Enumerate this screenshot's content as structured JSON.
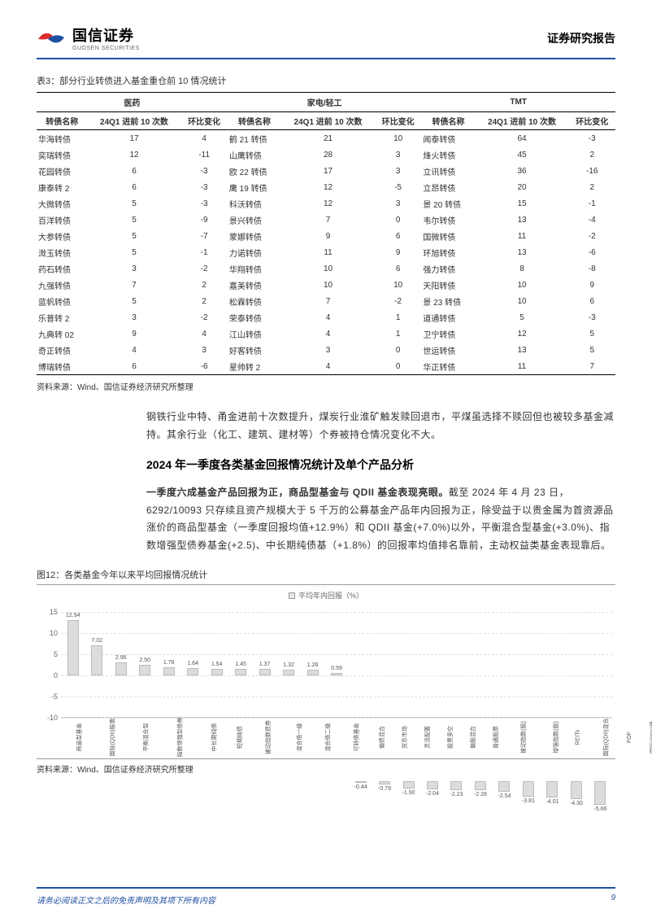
{
  "header": {
    "company_cn": "国信证券",
    "company_en": "GUOSEN SECURITIES",
    "report_type": "证券研究报告",
    "logo_colors": {
      "red": "#d92d2d",
      "blue": "#1e4fa0"
    },
    "divider_color": "#1e4fa0"
  },
  "table3": {
    "title": "表3：部分行业转债进入基金重仓前 10 情况统计",
    "groups": [
      "医药",
      "家电/轻工",
      "TMT"
    ],
    "sub_headers": [
      "转债名称",
      "24Q1 进前 10 次数",
      "环比变化"
    ],
    "rows": [
      {
        "a": [
          "华海转债",
          "17",
          "4"
        ],
        "b": [
          "鹤 21 转债",
          "21",
          "10"
        ],
        "c": [
          "闻泰转债",
          "64",
          "-3"
        ]
      },
      {
        "a": [
          "奕瑞转债",
          "12",
          "-11"
        ],
        "b": [
          "山鹰转债",
          "28",
          "3"
        ],
        "c": [
          "烽火转债",
          "45",
          "2"
        ]
      },
      {
        "a": [
          "花园转债",
          "6",
          "-3"
        ],
        "b": [
          "欧 22 转债",
          "17",
          "3"
        ],
        "c": [
          "立讯转债",
          "36",
          "-16"
        ]
      },
      {
        "a": [
          "康泰转 2",
          "6",
          "-3"
        ],
        "b": [
          "鹰 19 转债",
          "12",
          "-5"
        ],
        "c": [
          "立昂转债",
          "20",
          "2"
        ]
      },
      {
        "a": [
          "大微转债",
          "5",
          "-3"
        ],
        "b": [
          "科沃转债",
          "12",
          "3"
        ],
        "c": [
          "景 20 转债",
          "15",
          "-1"
        ]
      },
      {
        "a": [
          "百洋转债",
          "5",
          "-9"
        ],
        "b": [
          "景兴转债",
          "7",
          "0"
        ],
        "c": [
          "韦尔转债",
          "13",
          "-4"
        ]
      },
      {
        "a": [
          "大参转债",
          "5",
          "-7"
        ],
        "b": [
          "蒙娜转债",
          "9",
          "6"
        ],
        "c": [
          "国微转债",
          "11",
          "-2"
        ]
      },
      {
        "a": [
          "溦玉转债",
          "5",
          "-1"
        ],
        "b": [
          "力诺转债",
          "11",
          "9"
        ],
        "c": [
          "环旭转债",
          "13",
          "-6"
        ]
      },
      {
        "a": [
          "药石转债",
          "3",
          "-2"
        ],
        "b": [
          "华翔转债",
          "10",
          "6"
        ],
        "c": [
          "强力转债",
          "8",
          "-8"
        ]
      },
      {
        "a": [
          "九强转债",
          "7",
          "2"
        ],
        "b": [
          "嘉美转债",
          "10",
          "10"
        ],
        "c": [
          "天阳转债",
          "10",
          "9"
        ]
      },
      {
        "a": [
          "蓝帆转债",
          "5",
          "2"
        ],
        "b": [
          "松霖转债",
          "7",
          "-2"
        ],
        "c": [
          "景 23 转债",
          "10",
          "6"
        ]
      },
      {
        "a": [
          "乐普转 2",
          "3",
          "-2"
        ],
        "b": [
          "荣泰转债",
          "4",
          "1"
        ],
        "c": [
          "道通转债",
          "5",
          "-3"
        ]
      },
      {
        "a": [
          "九典转 02",
          "9",
          "4"
        ],
        "b": [
          "江山转债",
          "4",
          "1"
        ],
        "c": [
          "卫宁转债",
          "12",
          "5"
        ]
      },
      {
        "a": [
          "奇正转债",
          "4",
          "3"
        ],
        "b": [
          "好客转债",
          "3",
          "0"
        ],
        "c": [
          "世运转债",
          "13",
          "5"
        ]
      },
      {
        "a": [
          "博瑞转债",
          "6",
          "-6"
        ],
        "b": [
          "星帅转 2",
          "4",
          "0"
        ],
        "c": [
          "华正转债",
          "11",
          "7"
        ]
      }
    ],
    "source": "资料来源：Wind、国信证券经济研究所整理"
  },
  "para1": "钢铁行业中特、甬金进前十次数提升，煤炭行业淮矿触发赎回退市，平煤虽选择不赎回但也被较多基金减持。其余行业（化工、建筑、建材等）个券被持仓情况变化不大。",
  "section_heading": "2024 年一季度各类基金回报情况统计及单个产品分析",
  "para2": "一季度六成基金产品回报为正，商品型基金与 QDII 基金表现亮眼。截至 2024 年 4 月 23 日，6292/10093 只存续且资产规模大于 5 千万的公募基金产品年内回报为正，除受益于以贵金属为首资源品涨价的商品型基金（一季度回报均值+12.9%）和 QDII 基金(+7.0%)以外，平衡混合型基金(+3.0%)、指数增强型债券基金(+2.5)、中长期纯债基（+1.8%）的回报率均值排名靠前，主动权益类基金表现靠后。",
  "figure12": {
    "caption": "图12：各类基金今年以来平均回报情况统计",
    "legend": "平均年内回报（%）",
    "y_axis": {
      "min": -10,
      "max": 15,
      "ticks": [
        -10,
        -5,
        0,
        5,
        10,
        15
      ]
    },
    "bar_color": "#dcdcdc",
    "bar_border": "#bbbbbb",
    "grid_color": "#e0e0e0",
    "bars": [
      {
        "label": "商品型基金",
        "value": 12.94
      },
      {
        "label": "国际(QDII)股票",
        "value": 7.02
      },
      {
        "label": "平衡混合型",
        "value": 2.96
      },
      {
        "label": "指数增强型债券",
        "value": 2.5
      },
      {
        "label": "中长期纯债",
        "value": 1.78
      },
      {
        "label": "短期纯债",
        "value": 1.64
      },
      {
        "label": "被动指数债券",
        "value": 1.54
      },
      {
        "label": "混合债一级",
        "value": 1.45
      },
      {
        "label": "混合债二级",
        "value": 1.37
      },
      {
        "label": "可转债基金",
        "value": 1.32
      },
      {
        "label": "偏债混合",
        "value": 1.26
      },
      {
        "label": "货币市场",
        "value": 0.59
      },
      {
        "label": "灵活配置",
        "value": -0.44
      },
      {
        "label": "股票多空",
        "value": -0.79
      },
      {
        "label": "偏股混合",
        "value": -1.9
      },
      {
        "label": "普通股票",
        "value": -2.04
      },
      {
        "label": "被动指数(股)",
        "value": -2.23
      },
      {
        "label": "增强指数(股)",
        "value": -2.28
      },
      {
        "label": "REITs",
        "value": -2.54
      },
      {
        "label": "国际(QDII)混合",
        "value": -3.81
      },
      {
        "label": "FOF",
        "value": -4.01
      },
      {
        "label": "国际(QDII)债",
        "value": -4.3
      },
      {
        "label": "另类投资",
        "value": -5.66
      }
    ],
    "source": "资料来源：Wind、国信证券经济研究所整理"
  },
  "footer": {
    "disclaimer": "请务必阅读正文之后的免责声明及其项下所有内容",
    "page": "9"
  }
}
